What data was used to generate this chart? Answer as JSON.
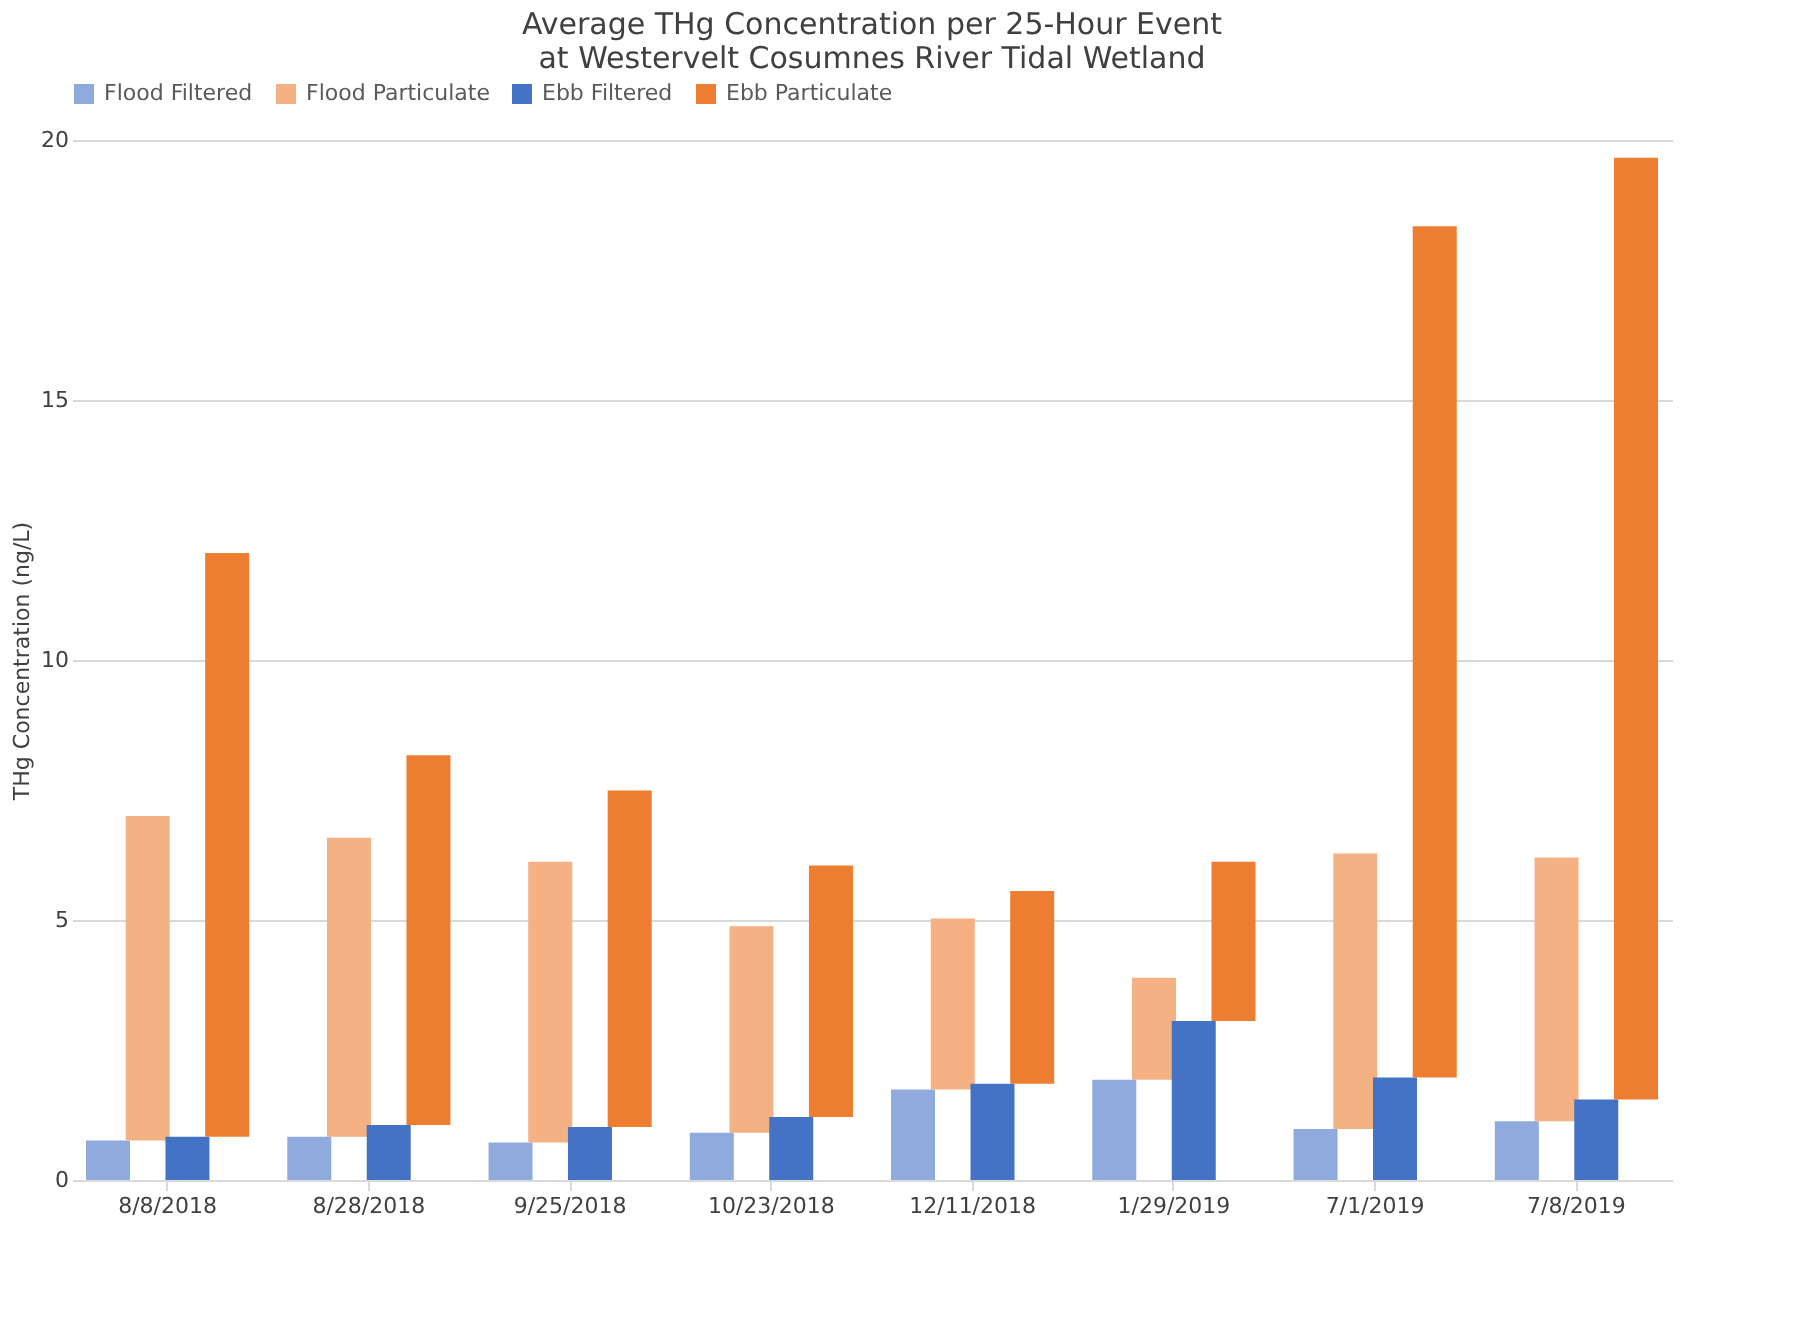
{
  "chart_data": {
    "type": "bar",
    "title": [
      "Average THg Concentration per 25-Hour Event",
      "at Westervelt Cosumnes River Tidal Wetland"
    ],
    "ylabel": "THg Concentration (ng/L)",
    "categories": [
      "8/8/2018",
      "8/28/2018",
      "9/25/2018",
      "10/23/2018",
      "12/11/2018",
      "1/29/2019",
      "7/1/2019",
      "7/8/2019"
    ],
    "series": [
      {
        "name": "Flood Filtered",
        "color": "#8faadc",
        "values": [
          0.76,
          0.83,
          0.72,
          0.91,
          1.74,
          1.93,
          0.98,
          1.13
        ]
      },
      {
        "name": "Flood Particulate",
        "color": "#f4b183",
        "base": [
          0.76,
          0.83,
          0.72,
          0.91,
          1.74,
          1.93,
          0.98,
          1.13
        ],
        "values": [
          6.24,
          5.75,
          5.4,
          3.97,
          3.29,
          1.96,
          5.3,
          5.07
        ]
      },
      {
        "name": "Ebb Filtered",
        "color": "#4472c4",
        "values": [
          0.83,
          1.06,
          1.02,
          1.21,
          1.85,
          3.06,
          1.97,
          1.55
        ]
      },
      {
        "name": "Ebb Particulate",
        "color": "#ed7d31",
        "base": [
          0.83,
          1.06,
          1.02,
          1.21,
          1.85,
          3.06,
          1.97,
          1.55
        ],
        "values": [
          11.23,
          7.11,
          6.47,
          4.84,
          3.71,
          3.06,
          16.37,
          18.11
        ]
      }
    ],
    "ylim": [
      0,
      20
    ],
    "yticks": [
      0,
      5,
      10,
      15,
      20
    ],
    "grid": "y",
    "legend": "top"
  }
}
